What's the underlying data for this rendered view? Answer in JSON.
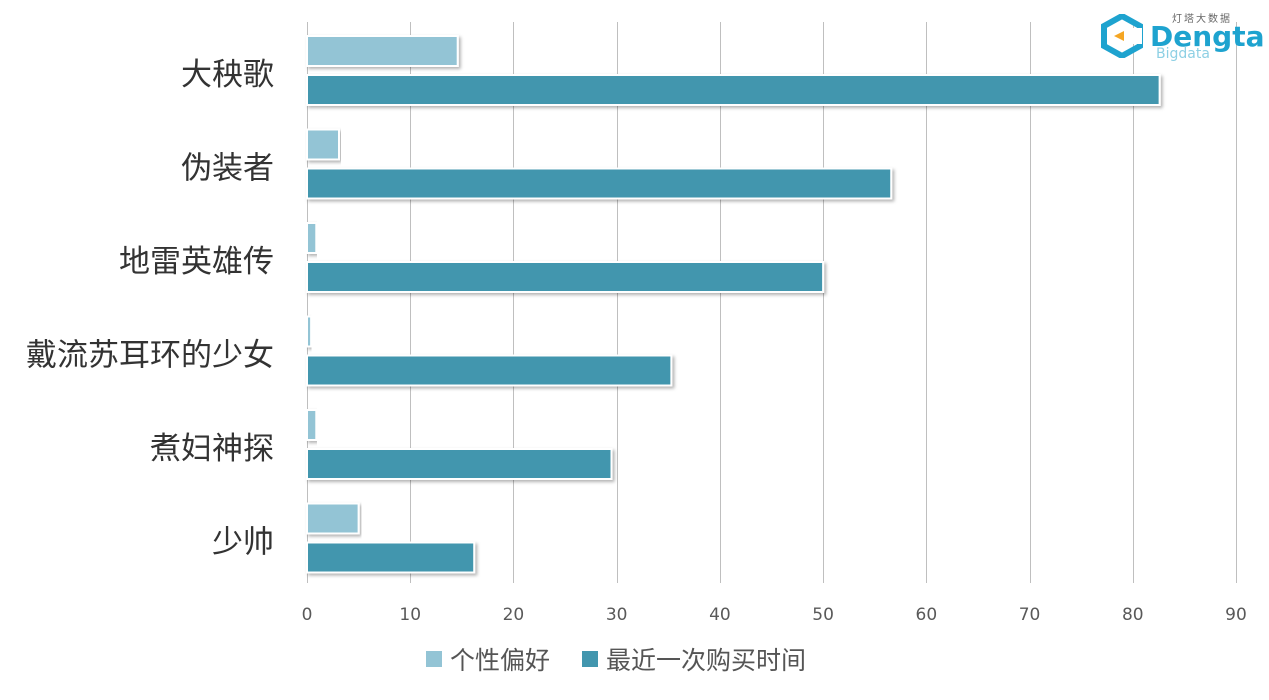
{
  "logo": {
    "top_text": "灯塔大数据",
    "main_text": "Dengta",
    "sub_text": "Bigdata"
  },
  "colors": {
    "series_light": "#93c4d5",
    "series_dark": "#4296ae",
    "grid": "#bfbfbf",
    "axis_text": "#595959"
  },
  "legend": {
    "items": [
      {
        "label": "个性偏好",
        "color": "#93c4d5"
      },
      {
        "label": "最近一次购买时间",
        "color": "#4296ae"
      }
    ]
  },
  "chart_data": {
    "type": "bar",
    "orientation": "horizontal",
    "categories": [
      "大秧歌",
      "伪装者",
      "地雷英雄传",
      "戴流苏耳环的少女",
      "煮妇神探",
      "少帅"
    ],
    "series": [
      {
        "name": "个性偏好",
        "values": [
          14.6,
          3.1,
          0.9,
          0.4,
          0.9,
          5.0
        ]
      },
      {
        "name": "最近一次购买时间",
        "values": [
          82.6,
          56.6,
          50.0,
          35.3,
          29.5,
          16.2
        ]
      }
    ],
    "xlim": [
      0,
      90
    ],
    "xticks": [
      0,
      10,
      20,
      30,
      40,
      50,
      60,
      70,
      80,
      90
    ],
    "grid": true,
    "legend_position": "bottom",
    "title": "",
    "xlabel": "",
    "ylabel": ""
  }
}
